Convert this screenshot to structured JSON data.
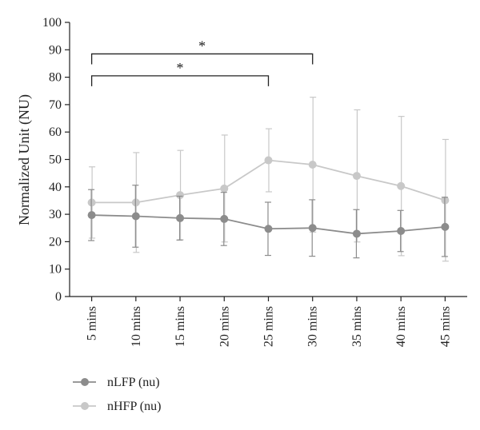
{
  "chart_data": {
    "type": "line",
    "title": "",
    "xlabel": "",
    "ylabel": "Normalized Unit (NU)",
    "ylim": [
      0,
      100
    ],
    "yticks": [
      0,
      10,
      20,
      30,
      40,
      50,
      60,
      70,
      80,
      90,
      100
    ],
    "categories": [
      "5 mins",
      "10 mins",
      "15 mins",
      "20 mins",
      "25 mins",
      "30 mins",
      "35 mins",
      "40 mins",
      "45 mins"
    ],
    "grid": false,
    "legend_position": "bottom-left",
    "series": [
      {
        "name": "nLFP (nu)",
        "color": "#8c8c8c",
        "values": [
          29.7,
          29.3,
          28.6,
          28.3,
          24.7,
          25.0,
          22.9,
          23.9,
          25.4
        ],
        "error": [
          9.3,
          11.3,
          8.0,
          9.7,
          9.7,
          10.3,
          8.8,
          7.5,
          10.8
        ]
      },
      {
        "name": "nHFP (nu)",
        "color": "#c8c8c8",
        "values": [
          34.3,
          34.3,
          37.0,
          39.4,
          49.7,
          48.1,
          44.0,
          40.3,
          35.1
        ],
        "error": [
          13.0,
          18.2,
          16.3,
          19.5,
          11.5,
          24.6,
          24.1,
          25.4,
          22.2
        ]
      }
    ],
    "annotations": [
      {
        "text": "*",
        "from": "5 mins",
        "to": "30 mins",
        "y": 88.5
      },
      {
        "text": "*",
        "from": "5 mins",
        "to": "25 mins",
        "y": 80.5
      }
    ]
  }
}
